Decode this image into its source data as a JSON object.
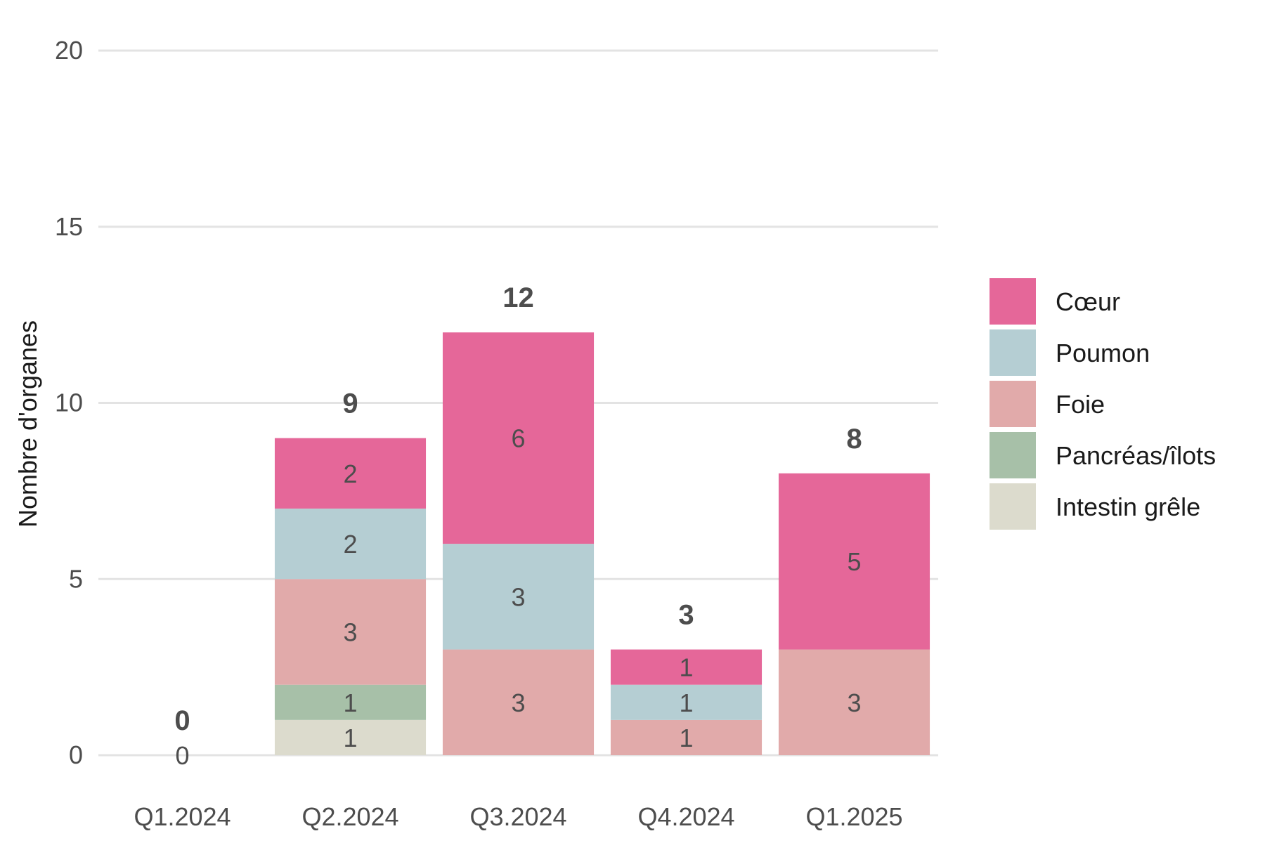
{
  "chart_data": {
    "type": "bar",
    "stacked": true,
    "title": "",
    "xlabel": "",
    "ylabel": "Nombre d'organes",
    "ylim": [
      0,
      20
    ],
    "yticks": [
      0,
      5,
      10,
      15,
      20
    ],
    "grid": true,
    "legend_position": "right",
    "categories": [
      "Q1.2024",
      "Q2.2024",
      "Q3.2024",
      "Q4.2024",
      "Q1.2025"
    ],
    "series": [
      {
        "name": "Intestin grêle",
        "color": "#dcdbcd",
        "values": [
          0,
          1,
          0,
          0,
          0
        ]
      },
      {
        "name": "Pancréas/îlots",
        "color": "#a7c0a8",
        "values": [
          0,
          1,
          0,
          0,
          0
        ]
      },
      {
        "name": "Foie",
        "color": "#e1aaaa",
        "values": [
          0,
          3,
          3,
          1,
          3
        ]
      },
      {
        "name": "Poumon",
        "color": "#b5ced3",
        "values": [
          0,
          2,
          3,
          1,
          0
        ]
      },
      {
        "name": "Cœur",
        "color": "#e56799",
        "values": [
          0,
          2,
          6,
          1,
          5
        ]
      }
    ],
    "legend_order": [
      "Cœur",
      "Poumon",
      "Foie",
      "Pancréas/îlots",
      "Intestin grêle"
    ],
    "totals": [
      0,
      9,
      12,
      3,
      8
    ],
    "zero_labels": [
      "0",
      "",
      "",
      "",
      ""
    ]
  }
}
